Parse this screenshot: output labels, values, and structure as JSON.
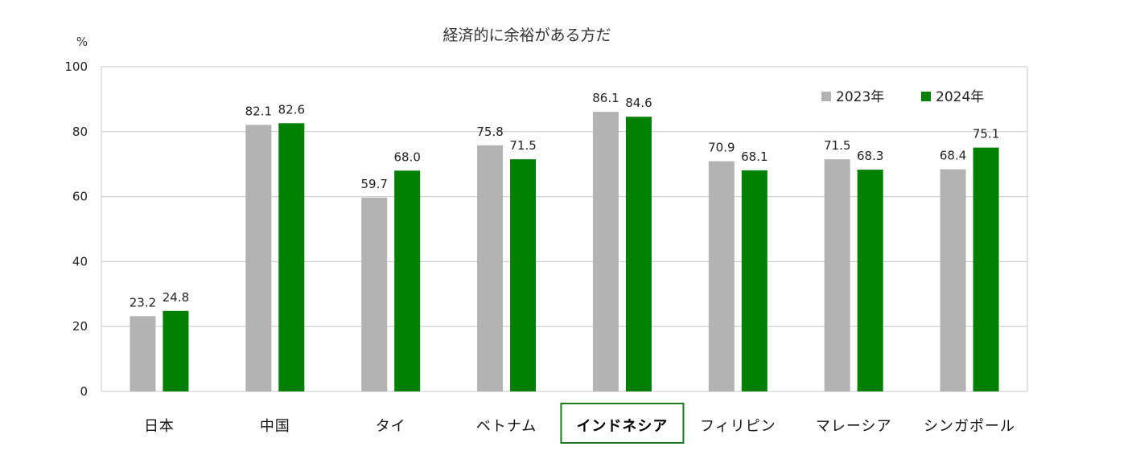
{
  "chart_data": {
    "type": "bar",
    "title": "経済的に余裕がある方だ",
    "unit_label": "%",
    "categories": [
      "日本",
      "中国",
      "タイ",
      "ベトナム",
      "インドネシア",
      "フィリピン",
      "マレーシア",
      "シンガポール"
    ],
    "highlighted_category": "インドネシア",
    "series": [
      {
        "name": "2023年",
        "color": "#b3b3b3",
        "values": [
          23.2,
          82.1,
          59.7,
          75.8,
          86.1,
          70.9,
          71.5,
          68.4
        ]
      },
      {
        "name": "2024年",
        "color": "#008000",
        "values": [
          24.8,
          82.6,
          68.0,
          71.5,
          84.6,
          68.1,
          68.3,
          75.1
        ]
      }
    ],
    "ylim": [
      0,
      100
    ],
    "yticks": [
      0,
      20,
      40,
      60,
      80,
      100
    ],
    "grid": true,
    "legend_position": "top-right",
    "highlight_color": "#1e7a1e"
  }
}
